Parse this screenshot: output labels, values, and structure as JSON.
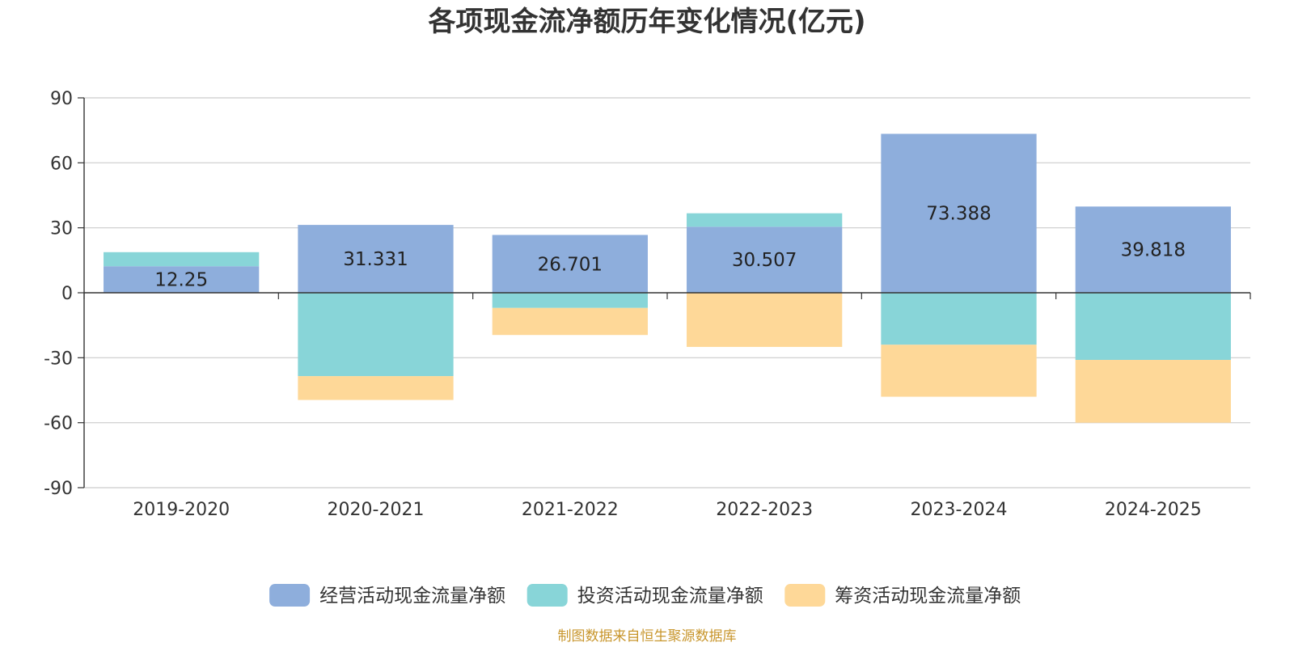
{
  "chart_data": {
    "type": "bar",
    "stacked": true,
    "title": "各项现金流净额历年变化情况(亿元)",
    "categories": [
      "2019-2020",
      "2020-2021",
      "2021-2022",
      "2022-2023",
      "2023-2024",
      "2024-2025"
    ],
    "ylim": [
      -90,
      90
    ],
    "yticks": [
      90,
      60,
      30,
      0,
      -30,
      -60,
      -90
    ],
    "grid": true,
    "legend_position": "bottom",
    "series": [
      {
        "name": "经营活动现金流量净额",
        "color": "#8eaedc",
        "values": [
          12.25,
          31.331,
          26.701,
          30.507,
          73.388,
          39.818
        ],
        "data_labels": [
          "12.25",
          "31.331",
          "26.701",
          "30.507",
          "73.388",
          "39.818"
        ]
      },
      {
        "name": "投资活动现金流量净额",
        "color": "#88d5d8",
        "values": [
          6.5,
          -38.5,
          -7,
          6.2,
          -24,
          -31
        ]
      },
      {
        "name": "筹资活动现金流量净额",
        "color": "#fed898",
        "values": [
          0,
          -11,
          -12.5,
          -25,
          -24,
          -29
        ]
      }
    ],
    "source": "制图数据来自恒生聚源数据库"
  }
}
